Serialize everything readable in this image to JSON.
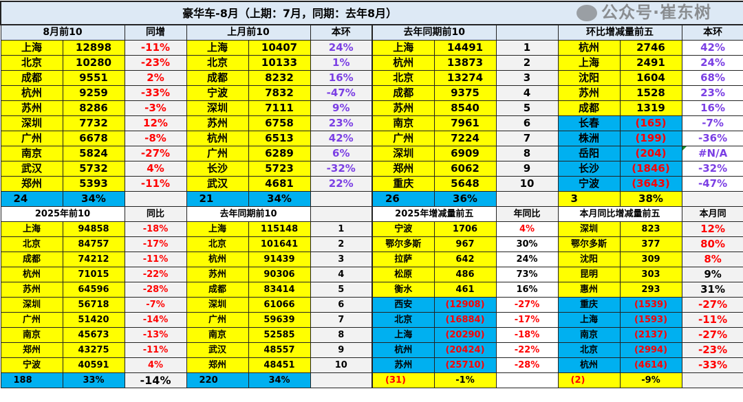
{
  "title": "豪华车-8月（上期：7月，同期：去年8月）",
  "colors": {
    "yellow": "#ffff00",
    "blue": "#00b0f0",
    "red": "#ff0000",
    "purple": "#7b3fe4",
    "black": "#000000",
    "gray": "#f2f2f2",
    "white": "#ffffff",
    "header": "#dde9f5"
  },
  "top": [
    {
      "header": "8月前10",
      "header2": "同增",
      "pct_color": "red",
      "pct_bg": "gray",
      "rows": [
        [
          "上海",
          "12898",
          "-11%"
        ],
        [
          "北京",
          "10280",
          "-23%"
        ],
        [
          "成都",
          "9551",
          "2%"
        ],
        [
          "杭州",
          "9259",
          "-33%"
        ],
        [
          "苏州",
          "8286",
          "-3%"
        ],
        [
          "深圳",
          "7732",
          "12%"
        ],
        [
          "广州",
          "6678",
          "-8%"
        ],
        [
          "南京",
          "5824",
          "-27%"
        ],
        [
          "武汉",
          "5732",
          "4%"
        ],
        [
          "郑州",
          "5393",
          "-11%"
        ]
      ],
      "summary": [
        "24",
        "34%",
        ""
      ],
      "summary_bg": "blue"
    },
    {
      "header": "上月前10",
      "header2": "本环",
      "pct_color": "purple",
      "pct_bg": "gray",
      "rows": [
        [
          "上海",
          "10407",
          "24%"
        ],
        [
          "北京",
          "10133",
          "1%"
        ],
        [
          "成都",
          "8232",
          "16%"
        ],
        [
          "宁波",
          "7832",
          "-47%"
        ],
        [
          "深圳",
          "7111",
          "9%"
        ],
        [
          "苏州",
          "6758",
          "23%"
        ],
        [
          "杭州",
          "6513",
          "42%"
        ],
        [
          "广州",
          "6289",
          "6%"
        ],
        [
          "长沙",
          "5723",
          "-32%"
        ],
        [
          "武汉",
          "4681",
          "22%"
        ]
      ],
      "summary": [
        "21",
        "34%",
        ""
      ],
      "summary_bg": "blue"
    },
    {
      "header": "去年同期前10",
      "header2": "",
      "pct_color": "black",
      "pct_bg": "gray",
      "rows": [
        [
          "上海",
          "14491",
          "1"
        ],
        [
          "杭州",
          "13873",
          "2"
        ],
        [
          "北京",
          "13274",
          "3"
        ],
        [
          "成都",
          "9375",
          "4"
        ],
        [
          "苏州",
          "8540",
          "5"
        ],
        [
          "南京",
          "7961",
          "6"
        ],
        [
          "广州",
          "7224",
          "7"
        ],
        [
          "深圳",
          "6909",
          "8"
        ],
        [
          "郑州",
          "6062",
          "9"
        ],
        [
          "重庆",
          "5648",
          "10"
        ]
      ],
      "summary": [
        "26",
        "36%",
        ""
      ],
      "summary_bg": "blue"
    },
    {
      "header": "环比增减量前五",
      "header2": "本环",
      "pct_color": "purple",
      "pct_bg": "white",
      "rows": [
        [
          "杭州",
          "2746",
          "42%"
        ],
        [
          "上海",
          "2491",
          "24%"
        ],
        [
          "沈阳",
          "1604",
          "68%"
        ],
        [
          "苏州",
          "1528",
          "23%"
        ],
        [
          "成都",
          "1319",
          "16%"
        ],
        [
          "长春",
          "(165)",
          "-7%"
        ],
        [
          "株洲",
          "(199)",
          "-36%"
        ],
        [
          "岳阳",
          "(204)",
          "#N/A"
        ],
        [
          "长沙",
          "(1846)",
          "-32%"
        ],
        [
          "宁波",
          "(3643)",
          "-47%"
        ]
      ],
      "summary": [
        "3",
        "38%",
        ""
      ],
      "summary_bg": "yellow"
    }
  ],
  "bottom": [
    {
      "header": "2025年前10",
      "header2": "同比",
      "pct_color": "red",
      "pct_bg": "gray",
      "rows": [
        [
          "上海",
          "94858",
          "-18%"
        ],
        [
          "北京",
          "84757",
          "-17%"
        ],
        [
          "成都",
          "74212",
          "-11%"
        ],
        [
          "杭州",
          "71015",
          "-22%"
        ],
        [
          "苏州",
          "64596",
          "-28%"
        ],
        [
          "深圳",
          "56718",
          "-7%"
        ],
        [
          "广州",
          "51420",
          "-14%"
        ],
        [
          "南京",
          "45673",
          "-13%"
        ],
        [
          "郑州",
          "43275",
          "-11%"
        ],
        [
          "宁波",
          "40591",
          "4%"
        ]
      ],
      "summary": [
        "188",
        "33%",
        "-14%"
      ],
      "summary_bg": "blue"
    },
    {
      "header": "去年同期前10",
      "header2": "",
      "pct_color": "black",
      "pct_bg": "gray",
      "rows": [
        [
          "上海",
          "115148",
          "1"
        ],
        [
          "北京",
          "101641",
          "2"
        ],
        [
          "杭州",
          "91439",
          "3"
        ],
        [
          "苏州",
          "90306",
          "4"
        ],
        [
          "成都",
          "83414",
          "5"
        ],
        [
          "深圳",
          "61066",
          "6"
        ],
        [
          "广州",
          "59639",
          "7"
        ],
        [
          "南京",
          "52585",
          "8"
        ],
        [
          "武汉",
          "48557",
          "9"
        ],
        [
          "郑州",
          "48451",
          "10"
        ]
      ],
      "summary": [
        "220",
        "34%",
        ""
      ],
      "summary_bg": "blue"
    },
    {
      "header": "2025年增减量前五",
      "header2": "年同比",
      "pct_bg": "white",
      "pct_colors": [
        "red",
        "black",
        "black",
        "black",
        "black",
        "red",
        "red",
        "red",
        "red",
        "red"
      ],
      "rows": [
        [
          "宁波",
          "1706",
          "4%"
        ],
        [
          "鄂尔多斯",
          "967",
          "30%"
        ],
        [
          "拉萨",
          "642",
          "24%"
        ],
        [
          "松原",
          "486",
          "73%"
        ],
        [
          "衡水",
          "461",
          "16%"
        ],
        [
          "西安",
          "(12908)",
          "-27%"
        ],
        [
          "北京",
          "(16884)",
          "-17%"
        ],
        [
          "上海",
          "(20290)",
          "-18%"
        ],
        [
          "杭州",
          "(20424)",
          "-22%"
        ],
        [
          "苏州",
          "(25710)",
          "-28%"
        ]
      ],
      "summary": [
        "(31)",
        "-1%",
        ""
      ],
      "summary_bg": "yellow"
    },
    {
      "header": "本月同比增减量前五",
      "header2": "本月同",
      "pct_bg": "gray",
      "big": true,
      "pct_colors": [
        "red",
        "red",
        "red",
        "black",
        "black",
        "red",
        "red",
        "red",
        "red",
        "red"
      ],
      "rows": [
        [
          "深圳",
          "823",
          "12%"
        ],
        [
          "鄂尔多斯",
          "377",
          "80%"
        ],
        [
          "沈阳",
          "309",
          "8%"
        ],
        [
          "昆明",
          "303",
          "9%"
        ],
        [
          "惠州",
          "293",
          "31%"
        ],
        [
          "重庆",
          "(1539)",
          "-27%"
        ],
        [
          "上海",
          "(1593)",
          "-11%"
        ],
        [
          "南京",
          "(2137)",
          "-27%"
        ],
        [
          "北京",
          "(2994)",
          "-23%"
        ],
        [
          "杭州",
          "(4614)",
          "-33%"
        ]
      ],
      "summary": [
        "(2)",
        "-9%",
        ""
      ],
      "summary_bg": "yellow"
    }
  ],
  "watermark": "公众号·崔东树"
}
